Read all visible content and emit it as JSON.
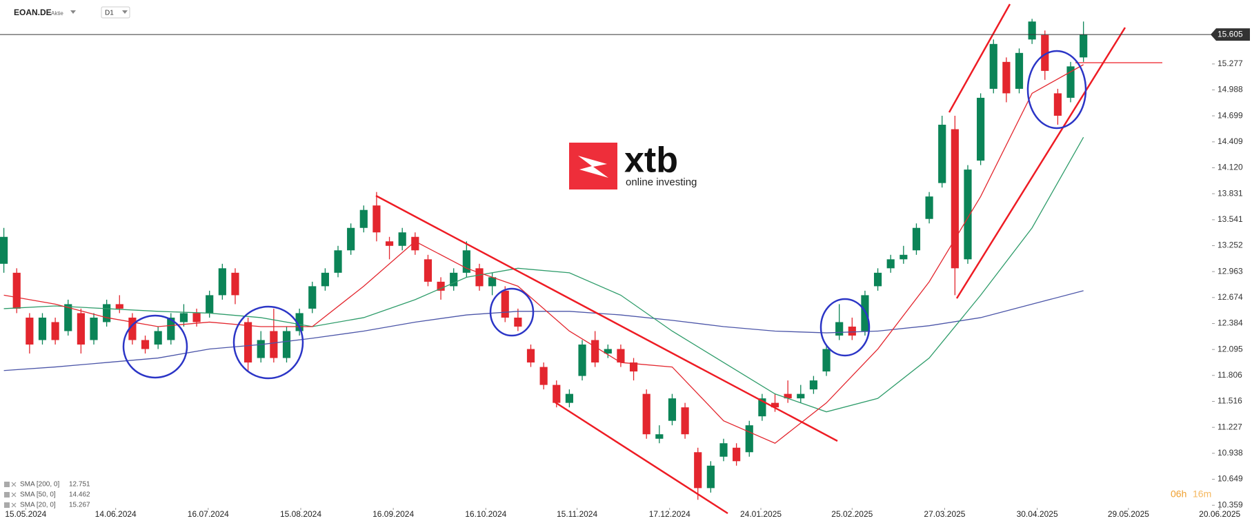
{
  "chart_data": {
    "type": "candlestick",
    "symbol": "EOAN.DE",
    "instrument_type": "Aktie",
    "timeframe": "D1",
    "logo_text": "xtb",
    "logo_tagline": "online investing",
    "countdown": [
      "06h",
      "16m"
    ],
    "open": [
      13.05,
      12.95,
      12.45,
      12.2,
      12.4,
      12.3,
      12.5,
      12.2,
      12.4,
      12.6,
      12.45,
      12.2,
      12.15,
      12.2,
      12.4,
      12.5,
      12.5,
      12.7,
      12.95,
      12.4,
      12.0,
      12.3,
      12.0,
      12.3,
      12.55,
      12.8,
      12.95,
      13.2,
      13.45,
      13.7,
      13.3,
      13.25,
      13.35,
      13.1,
      12.85,
      12.8,
      12.95,
      13.0,
      12.8,
      12.75,
      12.45,
      12.1,
      11.9,
      11.7,
      11.5,
      11.8,
      12.2,
      12.05,
      12.1,
      11.95,
      11.6,
      11.1,
      11.3,
      11.45,
      10.95,
      10.55,
      10.9,
      11.0,
      10.95,
      11.35,
      11.5,
      11.6,
      11.55,
      11.65,
      11.85,
      12.25,
      12.35,
      12.3,
      12.8,
      13.0,
      13.1,
      13.2,
      13.55,
      13.95,
      14.55,
      13.1,
      14.2,
      15.0,
      15.3,
      15.0,
      15.55,
      15.6,
      14.95,
      14.9,
      15.35
    ],
    "high": [
      13.45,
      13.0,
      12.5,
      12.5,
      12.45,
      12.65,
      12.55,
      12.5,
      12.65,
      12.7,
      12.5,
      12.25,
      12.35,
      12.5,
      12.6,
      12.55,
      12.75,
      13.05,
      13.0,
      12.45,
      12.3,
      12.55,
      12.35,
      12.55,
      12.85,
      13.0,
      13.25,
      13.5,
      13.7,
      13.85,
      13.35,
      13.45,
      13.4,
      13.15,
      12.9,
      13.0,
      13.3,
      13.05,
      12.95,
      12.8,
      12.55,
      12.15,
      11.95,
      11.75,
      11.65,
      12.2,
      12.3,
      12.15,
      12.15,
      12.0,
      11.65,
      11.25,
      11.6,
      11.5,
      11.0,
      10.85,
      11.1,
      11.05,
      11.3,
      11.6,
      11.6,
      11.75,
      11.7,
      11.8,
      12.15,
      12.6,
      12.45,
      12.75,
      13.0,
      13.15,
      13.25,
      13.5,
      13.85,
      14.7,
      14.7,
      14.15,
      14.95,
      15.55,
      15.35,
      15.45,
      15.78,
      15.65,
      15.0,
      15.3,
      15.75
    ],
    "low": [
      12.95,
      12.5,
      12.05,
      12.15,
      12.15,
      12.25,
      12.05,
      12.15,
      12.35,
      12.5,
      12.15,
      12.05,
      12.1,
      12.15,
      12.35,
      12.35,
      12.45,
      12.65,
      12.6,
      11.85,
      11.95,
      11.95,
      11.95,
      12.25,
      12.5,
      12.75,
      12.9,
      13.15,
      13.4,
      13.3,
      13.1,
      13.2,
      13.15,
      12.8,
      12.65,
      12.75,
      12.9,
      12.75,
      12.7,
      12.4,
      12.3,
      11.9,
      11.65,
      11.45,
      11.45,
      11.75,
      11.9,
      12.0,
      11.9,
      11.75,
      11.1,
      11.05,
      11.25,
      11.1,
      10.42,
      10.5,
      10.85,
      10.8,
      10.9,
      11.3,
      11.4,
      11.5,
      11.5,
      11.6,
      11.8,
      12.2,
      12.2,
      12.25,
      12.75,
      12.95,
      13.05,
      13.15,
      13.5,
      13.9,
      12.7,
      13.05,
      14.15,
      14.95,
      14.85,
      14.95,
      15.5,
      15.1,
      14.6,
      14.85,
      15.3
    ],
    "close": [
      13.35,
      12.55,
      12.15,
      12.45,
      12.2,
      12.6,
      12.15,
      12.45,
      12.6,
      12.55,
      12.2,
      12.1,
      12.3,
      12.45,
      12.5,
      12.4,
      12.7,
      13.0,
      12.7,
      11.95,
      12.2,
      12.0,
      12.3,
      12.5,
      12.8,
      12.95,
      13.2,
      13.45,
      13.65,
      13.4,
      13.25,
      13.4,
      13.2,
      12.85,
      12.75,
      12.95,
      13.2,
      12.8,
      12.9,
      12.45,
      12.35,
      11.95,
      11.7,
      11.5,
      11.6,
      12.15,
      11.95,
      12.1,
      11.95,
      11.85,
      11.15,
      11.15,
      11.55,
      11.15,
      10.55,
      10.8,
      11.05,
      10.85,
      11.25,
      11.55,
      11.45,
      11.55,
      11.6,
      11.75,
      12.1,
      12.4,
      12.25,
      12.7,
      12.95,
      13.1,
      13.15,
      13.45,
      13.8,
      14.6,
      13.0,
      14.1,
      14.9,
      15.5,
      14.95,
      15.4,
      15.75,
      15.2,
      14.7,
      15.25,
      15.605
    ],
    "up_color": "#0b8457",
    "down_color": "#e3262e",
    "sma_x": [
      0,
      4,
      8,
      12,
      16,
      20,
      24,
      28,
      32,
      36,
      40,
      44,
      48,
      52,
      56,
      60,
      64,
      68,
      72,
      76,
      80,
      84
    ],
    "series": [
      {
        "name": "SMA [200, 0]",
        "color": "#4b55a8",
        "last_value": 12.751,
        "values": [
          11.86,
          11.9,
          11.95,
          12.0,
          12.1,
          12.15,
          12.22,
          12.3,
          12.4,
          12.48,
          12.52,
          12.52,
          12.48,
          12.42,
          12.35,
          12.3,
          12.28,
          12.3,
          12.36,
          12.45,
          12.6,
          12.75
        ]
      },
      {
        "name": "SMA [50, 0]",
        "color": "#2e9c6a",
        "last_value": 14.462,
        "values": [
          12.55,
          12.58,
          12.55,
          12.52,
          12.5,
          12.45,
          12.35,
          12.45,
          12.65,
          12.9,
          13.0,
          12.95,
          12.7,
          12.3,
          11.95,
          11.6,
          11.4,
          11.55,
          12.0,
          12.7,
          13.45,
          14.46
        ]
      },
      {
        "name": "SMA [20, 0]",
        "color": "#e3262e",
        "last_value": 15.267,
        "values": [
          12.7,
          12.6,
          12.45,
          12.35,
          12.4,
          12.35,
          12.35,
          12.8,
          13.3,
          13.0,
          12.8,
          12.3,
          11.95,
          11.9,
          11.3,
          11.05,
          11.5,
          12.1,
          12.85,
          13.8,
          14.95,
          15.27
        ]
      }
    ],
    "last_price": 15.605,
    "xlim": [
      -0.3,
      94.0
    ],
    "xticks": [
      {
        "value": 1.7,
        "label": "15.05.2024"
      },
      {
        "value": 8.7,
        "label": "14.06.2024"
      },
      {
        "value": 15.9,
        "label": "16.07.2024"
      },
      {
        "value": 23.1,
        "label": "15.08.2024"
      },
      {
        "value": 30.3,
        "label": "16.09.2024"
      },
      {
        "value": 37.5,
        "label": "16.10.2024"
      },
      {
        "value": 44.6,
        "label": "15.11.2024"
      },
      {
        "value": 51.8,
        "label": "17.12.2024"
      },
      {
        "value": 58.9,
        "label": "24.01.2025"
      },
      {
        "value": 66,
        "label": "25.02.2025"
      },
      {
        "value": 73.2,
        "label": "27.03.2025"
      },
      {
        "value": 80.4,
        "label": "30.04.2025"
      },
      {
        "value": 87.5,
        "label": "29.05.2025"
      },
      {
        "value": 94.6,
        "label": "20.06.2025"
      }
    ],
    "ylim": [
      10.33,
      15.99
    ],
    "yticks": [
      10.359,
      10.649,
      10.938,
      11.227,
      11.516,
      11.806,
      12.095,
      12.384,
      12.674,
      12.963,
      13.252,
      13.541,
      13.831,
      {
        "value": 14.12,
        "label": "14.120"
      },
      14.409,
      14.699,
      14.988,
      15.277
    ]
  }
}
